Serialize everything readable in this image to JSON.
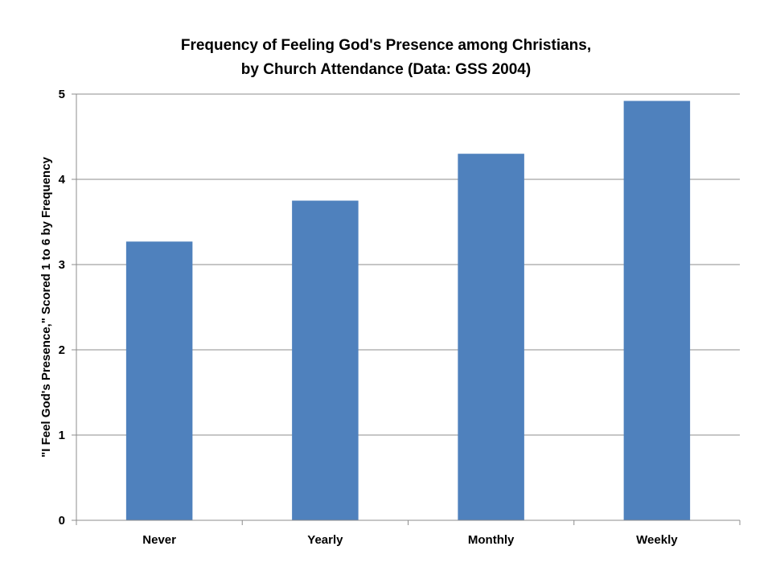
{
  "chart_data": {
    "type": "bar",
    "title_lines": [
      "Frequency of Feeling God's Presence among Christians,",
      "by Church Attendance (Data: GSS 2004)"
    ],
    "xlabel": "",
    "ylabel": "\"I Feel God's Presence,\" Scored 1 to 6 by Frequency",
    "categories": [
      "Never",
      "Yearly",
      "Monthly",
      "Weekly"
    ],
    "values": [
      3.27,
      3.75,
      4.3,
      4.92
    ],
    "ylim": [
      0,
      5
    ],
    "yticks": [
      "0",
      "1",
      "2",
      "3",
      "4",
      "5"
    ],
    "grid": true,
    "legend": "none",
    "bar_color": "#4f81bd"
  }
}
